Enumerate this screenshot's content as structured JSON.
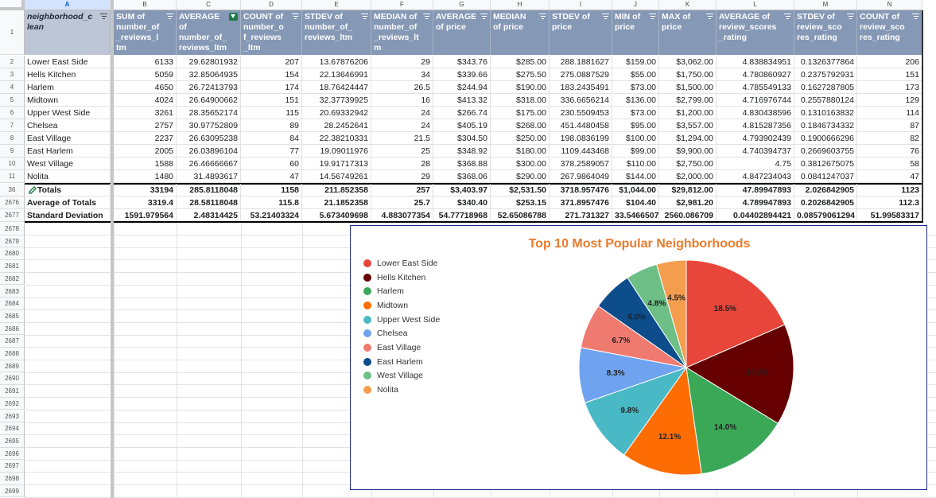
{
  "columns": [
    "A",
    "B",
    "C",
    "D",
    "E",
    "F",
    "G",
    "H",
    "I",
    "J",
    "K",
    "L",
    "M",
    "N"
  ],
  "headers": [
    "neighborhood_clean",
    "SUM of number_of_reviews_ltm",
    "AVERAGE of number_of_reviews_ltm",
    "COUNT of number_of_reviews_ltm",
    "STDEV of number_of_reviews_ltm",
    "MEDIAN of number_of_reviews_ltm",
    "AVERAGE of price",
    "MEDIAN of price",
    "STDEV of price",
    "MIN of price",
    "MAX of price",
    "AVERAGE of review_scores_rating",
    "STDEV of review_scores_rating",
    "COUNT of review_scores_rating"
  ],
  "header_display": [
    "neighborhood_c\nlean",
    "SUM of\nnumber_of\n_reviews_l\ntm",
    "AVERAGE\nof\nnumber_of_\nreviews_ltm",
    "COUNT of\nnumber_o\nf_reviews\n_ltm",
    "STDEV of\nnumber_of_\nreviews_ltm",
    "MEDIAN of\nnumber_of\n_reviews_lt\nm",
    "AVERAGE\nof price",
    "MEDIAN\nof price",
    "STDEV of\nprice",
    "MIN of\nprice",
    "MAX of\nprice",
    "AVERAGE of\nreview_scores\n_rating",
    "STDEV of\nreview_sco\nres_rating",
    "COUNT of\nreview_sco\nres_rating"
  ],
  "rows": [
    {
      "num": "2",
      "cells": [
        "Lower East Side",
        "6133",
        "29.62801932",
        "207",
        "13.67876206",
        "29",
        "$343.76",
        "$285.00",
        "288.1881627",
        "$159.00",
        "$3,062.00",
        "4.838834951",
        "0.1326377864",
        "206"
      ]
    },
    {
      "num": "3",
      "cells": [
        "Hells Kitchen",
        "5059",
        "32.85064935",
        "154",
        "22.13646991",
        "34",
        "$339.66",
        "$275.50",
        "275.0887529",
        "$55.00",
        "$1,750.00",
        "4.780860927",
        "0.2375792931",
        "151"
      ]
    },
    {
      "num": "4",
      "cells": [
        "Harlem",
        "4650",
        "26.72413793",
        "174",
        "18.76424447",
        "26.5",
        "$244.94",
        "$190.00",
        "183.2435491",
        "$73.00",
        "$1,500.00",
        "4.785549133",
        "0.1627287805",
        "173"
      ]
    },
    {
      "num": "5",
      "cells": [
        "Midtown",
        "4024",
        "26.64900662",
        "151",
        "32.37739925",
        "16",
        "$413.32",
        "$318.00",
        "336.6656214",
        "$136.00",
        "$2,799.00",
        "4.716976744",
        "0.2557880124",
        "129"
      ]
    },
    {
      "num": "6",
      "cells": [
        "Upper West Side",
        "3261",
        "28.35652174",
        "115",
        "20.69332942",
        "24",
        "$266.74",
        "$175.00",
        "230.5509453",
        "$73.00",
        "$1,200.00",
        "4.830438596",
        "0.1310163832",
        "114"
      ]
    },
    {
      "num": "7",
      "cells": [
        "Chelsea",
        "2757",
        "30.97752809",
        "89",
        "28.2452641",
        "24",
        "$405.19",
        "$268.00",
        "451.4480458",
        "$95.00",
        "$3,557.00",
        "4.815287356",
        "0.1846734332",
        "87"
      ]
    },
    {
      "num": "8",
      "cells": [
        "East Village",
        "2237",
        "26.63095238",
        "84",
        "22.38210331",
        "21.5",
        "$304.50",
        "$250.00",
        "198.0836199",
        "$100.00",
        "$1,294.00",
        "4.793902439",
        "0.1900666296",
        "82"
      ]
    },
    {
      "num": "9",
      "cells": [
        "East Harlem",
        "2005",
        "26.03896104",
        "77",
        "19.09011976",
        "25",
        "$348.92",
        "$180.00",
        "1109.443468",
        "$99.00",
        "$9,900.00",
        "4.740394737",
        "0.2669603755",
        "76"
      ]
    },
    {
      "num": "10",
      "cells": [
        "West Village",
        "1588",
        "26.46666667",
        "60",
        "19.91717313",
        "28",
        "$368.88",
        "$300.00",
        "378.2589057",
        "$110.00",
        "$2,750.00",
        "4.75",
        "0.3812675075",
        "58"
      ]
    },
    {
      "num": "11",
      "cells": [
        "Nolita",
        "1480",
        "31.4893617",
        "47",
        "14.56749261",
        "29",
        "$368.06",
        "$290.00",
        "267.9864049",
        "$144.00",
        "$2,000.00",
        "4.847234043",
        "0.0841247037",
        "47"
      ]
    }
  ],
  "totals": [
    {
      "num": "36",
      "cells": [
        "Totals",
        "33194",
        "285.8118048",
        "1158",
        "211.852358",
        "257",
        "$3,403.97",
        "$2,531.50",
        "3718.957476",
        "$1,044.00",
        "$29,812.00",
        "47.89947893",
        "2.026842905",
        "1123"
      ]
    },
    {
      "num": "2676",
      "cells": [
        "Average of Totals",
        "3319.4",
        "28.58118048",
        "115.8",
        "21.1852358",
        "25.7",
        "$340.40",
        "$253.15",
        "371.8957476",
        "$104.40",
        "$2,981.20",
        "4.789947893",
        "0.2026842905",
        "112.3"
      ]
    },
    {
      "num": "2677",
      "cells": [
        "Standard Deviation",
        "1591.979564",
        "2.48314425",
        "53.21403324",
        "5.673409698",
        "4.883077354",
        "54.77718968",
        "52.65086788",
        "271.731327",
        "33.5466507",
        "2560.086709",
        "0.04402894421",
        "0.08579061294",
        "51.99583317"
      ]
    }
  ],
  "empty_rows": [
    "2678",
    "2679",
    "2680",
    "2681",
    "2682",
    "2683",
    "2684",
    "2685",
    "2686",
    "2687",
    "2688",
    "2689",
    "2690",
    "2691",
    "2692",
    "2693",
    "2694",
    "2695",
    "2696",
    "2697",
    "2698",
    "2699"
  ],
  "chart_data": {
    "type": "pie",
    "title": "Top 10 Most Popular Neighborhoods",
    "categories": [
      "Lower East Side",
      "Hells Kitchen",
      "Harlem",
      "Midtown",
      "Upper West Side",
      "Chelsea",
      "East Village",
      "East Harlem",
      "West Village",
      "Nolita"
    ],
    "values": [
      6133,
      5059,
      4650,
      4024,
      3261,
      2757,
      2237,
      2005,
      1588,
      1480
    ],
    "labels": [
      "18.5%",
      "15.2%",
      "14.0%",
      "12.1%",
      "9.8%",
      "8.3%",
      "6.7%",
      "6.0%",
      "4.8%",
      "4.5%"
    ],
    "colors": [
      "#e8463a",
      "#660000",
      "#3ba858",
      "#fe6d04",
      "#49b9c6",
      "#6fa3ef",
      "#ef7b70",
      "#0d4d8c",
      "#6dbf85",
      "#f59d4e"
    ],
    "legend_position": "left"
  }
}
